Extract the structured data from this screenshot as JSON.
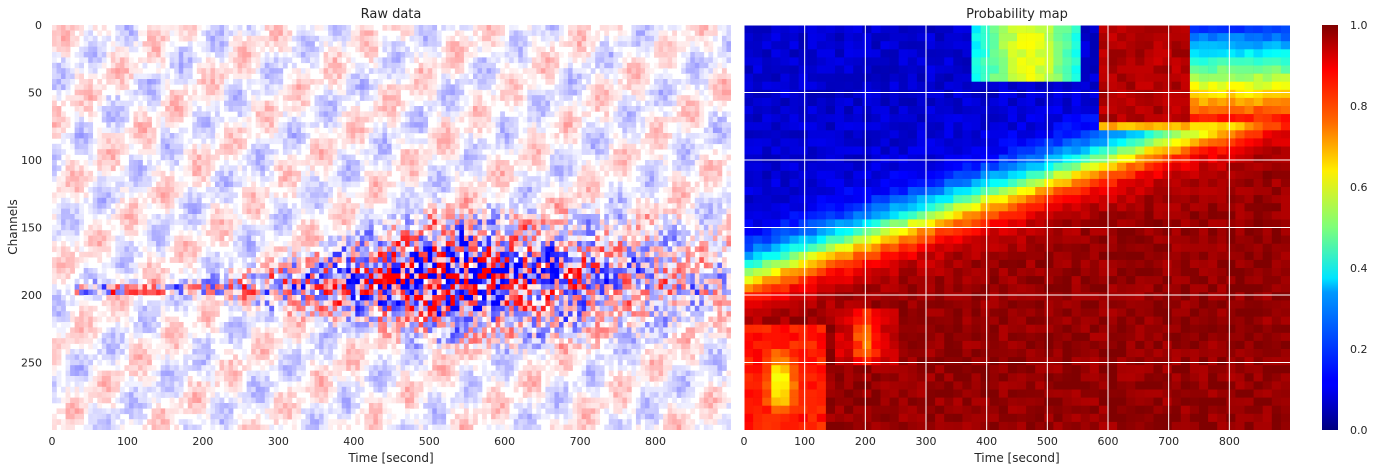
{
  "chart_data": [
    {
      "type": "heatmap",
      "title": "Raw data",
      "xlabel": "Time [second]",
      "ylabel": "Channels",
      "xlim": [
        0,
        900
      ],
      "ylim": [
        300,
        0
      ],
      "xticks": [
        "0",
        "100",
        "200",
        "300",
        "400",
        "500",
        "600",
        "700",
        "800"
      ],
      "yticks": [
        "0",
        "50",
        "100",
        "150",
        "200",
        "250"
      ],
      "colormap": "bwr",
      "event": {
        "source_channel": 195,
        "onset_time": 180,
        "peak_time": 520,
        "end_time": 800,
        "spread_channels": [
          125,
          240
        ]
      }
    },
    {
      "type": "heatmap",
      "title": "Probability map",
      "xlabel": "Time [second]",
      "xlim": [
        0,
        900
      ],
      "ylim": [
        300,
        0
      ],
      "xticks": [
        "0",
        "100",
        "200",
        "300",
        "400",
        "500",
        "600",
        "700",
        "800"
      ],
      "grid": true,
      "colormap": "jet",
      "colorbar": {
        "min": 0.0,
        "max": 1.0,
        "ticks": [
          "0.0",
          "0.2",
          "0.4",
          "0.6",
          "0.8",
          "1.0"
        ]
      },
      "regions": [
        {
          "name": "high-probability",
          "approx_value": 0.95
        },
        {
          "name": "low-probability",
          "approx_value": 0.1
        }
      ]
    }
  ]
}
